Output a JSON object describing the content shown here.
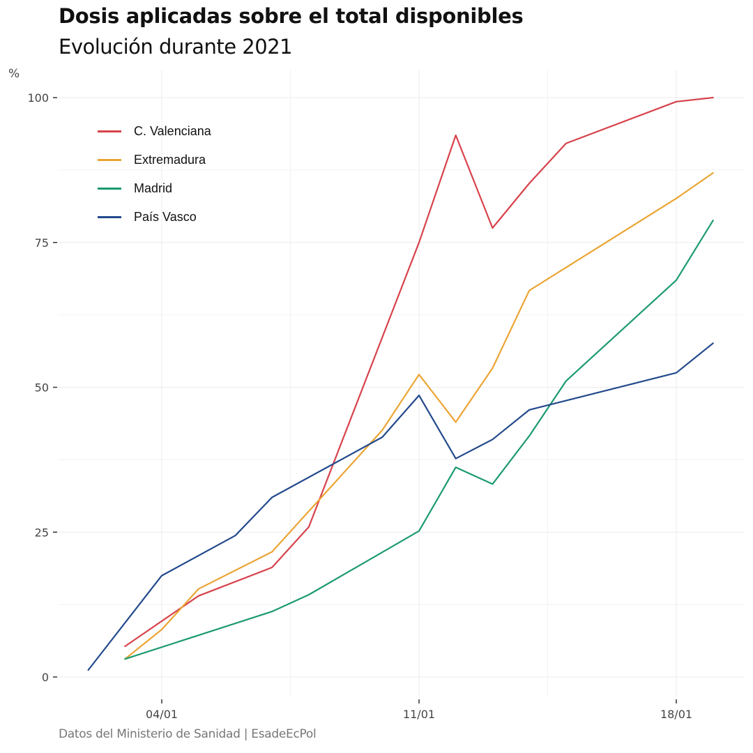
{
  "header": {
    "title": "Dosis aplicadas sobre el total disponibles",
    "subtitle": "Evolución durante 2021"
  },
  "caption": "Datos del Ministerio de Sanidad | EsadeEcPol",
  "chart_data": {
    "type": "line",
    "title": "Dosis aplicadas sobre el total disponibles",
    "subtitle": "Evolución durante 2021",
    "xlabel": "",
    "ylabel": "%",
    "x_unit": "day of January 2021",
    "xlim": [
      1,
      20
    ],
    "ylim": [
      0,
      100
    ],
    "x_ticks": [
      4,
      11,
      18
    ],
    "x_tick_labels": [
      "04/01",
      "11/01",
      "18/01"
    ],
    "y_ticks": [
      0,
      25,
      50,
      75,
      100
    ],
    "y_tick_labels": [
      "0",
      "25",
      "50",
      "75",
      "100"
    ],
    "grid": true,
    "legend_position": "top-left",
    "series": [
      {
        "name": "C. Valenciana",
        "color": "#D7424B",
        "x": [
          3,
          5,
          7,
          8,
          11,
          12,
          13,
          14,
          15,
          18,
          19
        ],
        "values": [
          5.3,
          14.0,
          18.9,
          25.9,
          75.0,
          93.5,
          77.5,
          85.2,
          92.1,
          99.3,
          100.0
        ]
      },
      {
        "name": "Extremadura",
        "color": "#EBA433",
        "x": [
          3,
          4,
          5,
          7,
          10,
          11,
          12,
          13,
          14,
          18,
          19
        ],
        "values": [
          3.1,
          8.2,
          15.2,
          21.6,
          42.6,
          52.2,
          44.0,
          53.3,
          66.7,
          82.6,
          87.0
        ]
      },
      {
        "name": "Madrid",
        "color": "#1B9A6E",
        "x": [
          3,
          7,
          8,
          11,
          12,
          13,
          14,
          15,
          18,
          19
        ],
        "values": [
          3.1,
          11.3,
          14.2,
          25.2,
          36.2,
          33.3,
          41.6,
          51.1,
          68.5,
          78.8
        ]
      },
      {
        "name": "País Vasco",
        "color": "#22498C",
        "x": [
          2,
          4,
          6,
          7,
          10,
          11,
          12,
          13,
          14,
          18,
          19
        ],
        "values": [
          1.2,
          17.5,
          24.4,
          31.0,
          41.4,
          48.6,
          37.7,
          41.0,
          46.1,
          52.5,
          57.6
        ]
      }
    ]
  }
}
